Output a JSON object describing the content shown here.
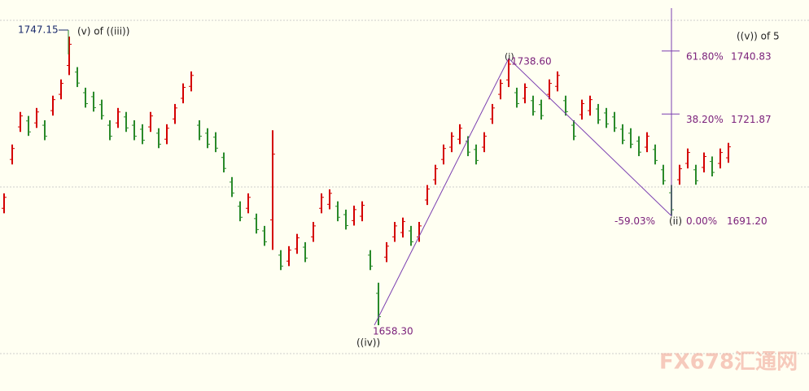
{
  "chart_data": {
    "type": "ohlc",
    "high": [
      1698.0,
      1712.7,
      1722.5,
      1721.3,
      1723.7,
      1720.0,
      1727.4,
      1732.3,
      1745.2,
      1736.0,
      1729.8,
      1728.6,
      1726.2,
      1720.0,
      1723.7,
      1722.5,
      1720.0,
      1718.8,
      1722.5,
      1717.6,
      1718.8,
      1724.9,
      1731.1,
      1734.7,
      1720.0,
      1717.6,
      1716.4,
      1710.3,
      1702.9,
      1695.6,
      1698.0,
      1691.9,
      1688.2,
      1717.0,
      1680.9,
      1682.1,
      1685.8,
      1683.3,
      1689.4,
      1698.0,
      1699.2,
      1695.6,
      1693.1,
      1694.3,
      1695.6,
      1680.9,
      1671.1,
      1683.3,
      1689.4,
      1690.7,
      1688.2,
      1689.4,
      1700.5,
      1706.6,
      1712.7,
      1716.4,
      1718.8,
      1715.2,
      1712.7,
      1716.4,
      1724.9,
      1732.3,
      1738.6,
      1729.8,
      1731.1,
      1727.4,
      1726.2,
      1732.3,
      1734.7,
      1727.4,
      1720.0,
      1726.2,
      1727.4,
      1724.9,
      1723.7,
      1722.5,
      1718.8,
      1717.6,
      1715.2,
      1716.4,
      1712.7,
      1706.6,
      1700.5,
      1706.6,
      1711.5,
      1706.6,
      1710.3,
      1709.1,
      1711.5,
      1713.2
    ],
    "low": [
      1692.0,
      1706.7,
      1716.5,
      1715.3,
      1717.7,
      1714.0,
      1721.4,
      1726.3,
      1733.6,
      1730.0,
      1723.8,
      1722.6,
      1720.2,
      1714.0,
      1717.7,
      1716.5,
      1714.0,
      1712.8,
      1716.5,
      1711.6,
      1712.8,
      1718.9,
      1725.1,
      1728.7,
      1714.0,
      1711.6,
      1710.4,
      1704.3,
      1696.9,
      1689.6,
      1692.0,
      1685.9,
      1682.2,
      1681.0,
      1674.9,
      1676.1,
      1679.8,
      1677.3,
      1683.4,
      1692.0,
      1693.2,
      1689.6,
      1687.1,
      1688.3,
      1689.6,
      1674.9,
      1658.3,
      1677.3,
      1683.4,
      1684.7,
      1682.2,
      1683.4,
      1694.5,
      1700.6,
      1706.7,
      1710.4,
      1712.8,
      1709.2,
      1706.7,
      1710.4,
      1718.9,
      1726.3,
      1730.0,
      1723.8,
      1725.1,
      1721.4,
      1720.2,
      1726.3,
      1728.7,
      1721.4,
      1714.0,
      1720.2,
      1721.4,
      1718.9,
      1717.7,
      1716.5,
      1712.8,
      1711.6,
      1709.2,
      1710.4,
      1706.7,
      1700.6,
      1691.2,
      1700.6,
      1705.5,
      1700.6,
      1704.3,
      1703.1,
      1705.5,
      1707.2
    ],
    "ylim": [
      1638.5,
      1756.2
    ],
    "up_color": "#d40000",
    "down_color": "#2a8a2a",
    "wave_color": "#7b3fb0",
    "price_marker": {
      "value": 1747.15,
      "label": "(v) of ((iii))"
    },
    "waves": [
      {
        "label": "((iv))",
        "price": {
          "value": 1658.3,
          "label": "1658.30"
        }
      },
      {
        "label": "(i)",
        "price": {
          "value": 1738.6,
          "label": "1738.60"
        }
      },
      {
        "label": "(ii)"
      }
    ],
    "retracement": {
      "title": "((v)) of 5",
      "levels": [
        {
          "ratio": {
            "value": 61.8,
            "label": "61.80%"
          },
          "price": 1740.83
        },
        {
          "ratio": {
            "value": 38.2,
            "label": "38.20%"
          },
          "price": 1721.87
        },
        {
          "ratio": {
            "value": 0,
            "label": "0.00%"
          },
          "price": {
            "value": 1691.2,
            "label": "1691.20"
          }
        }
      ],
      "ratio_note": {
        "value": -59.03,
        "label": "-59.03%"
      }
    },
    "watermark": "FX678汇通网"
  }
}
